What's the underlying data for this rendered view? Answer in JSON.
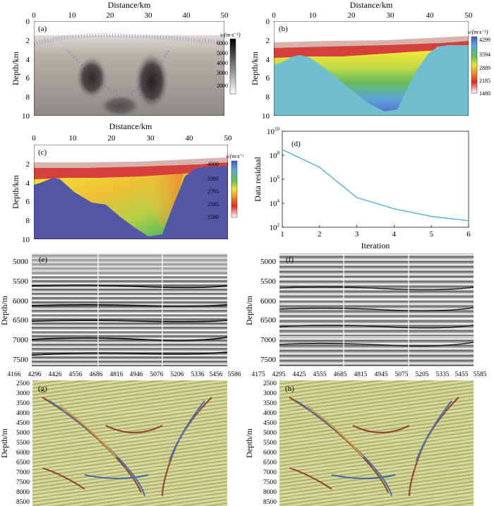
{
  "panel_a": {
    "label": "(a)",
    "xlabel": "Distance/km",
    "ylabel": "Depth/km",
    "xticks": [
      "0",
      "10",
      "20",
      "30",
      "40",
      "50"
    ],
    "yticks": [
      "0",
      "2",
      "4",
      "6",
      "8",
      "10"
    ],
    "colorbar": {
      "title": "v/(m·s⁻¹)",
      "ticks": [
        "6000",
        "5000",
        "4000",
        "3000",
        "2000"
      ]
    }
  },
  "panel_b": {
    "label": "(b)",
    "xlabel": "Distance/km",
    "ylabel": "Depth/km",
    "xticks": [
      "0",
      "10",
      "20",
      "30",
      "40",
      "50"
    ],
    "yticks": [
      "0",
      "2",
      "4",
      "6",
      "8",
      "10"
    ],
    "colorbar": {
      "title": "v/(m·s⁻¹)",
      "ticks": [
        "4299",
        "3594",
        "2889",
        "2185",
        "1480"
      ]
    }
  },
  "panel_c": {
    "label": "(c)",
    "xlabel": "Distance/km",
    "ylabel": "Depth/km",
    "xticks": [
      "0",
      "10",
      "20",
      "30",
      "40",
      "50"
    ],
    "yticks": [
      "0",
      "2",
      "4",
      "6",
      "8",
      "10"
    ],
    "colorbar": {
      "title": "v/(m·s⁻¹)",
      "ticks": [
        "4000",
        "3395",
        "2795",
        "2185",
        "1580"
      ]
    }
  },
  "panel_d": {
    "label": "(d)",
    "xlabel": "Iteration",
    "ylabel": "Data residual",
    "xticks": [
      "1",
      "2",
      "3",
      "4",
      "5",
      "6"
    ],
    "yticks": [
      {
        "base": "10",
        "exp": "10"
      },
      {
        "base": "10",
        "exp": "8"
      },
      {
        "base": "10",
        "exp": "6"
      },
      {
        "base": "10",
        "exp": "4"
      },
      {
        "base": "10",
        "exp": "2"
      }
    ]
  },
  "panel_e": {
    "label": "(e)",
    "ylabel": "Depth/m",
    "yticks": [
      "5000",
      "5500",
      "6000",
      "6500",
      "7000",
      "7500"
    ]
  },
  "panel_f": {
    "label": "(f)",
    "ylabel": "Depth/m",
    "yticks": [
      "5000",
      "5500",
      "6000",
      "6500",
      "7000",
      "7500"
    ]
  },
  "panel_g": {
    "label": "(g)",
    "ylabel": "Depth/m",
    "xticks": [
      "4166",
      "4296",
      "4426",
      "4556",
      "4686",
      "4816",
      "4946",
      "5076",
      "5206",
      "5336",
      "5456",
      "5586"
    ],
    "yticks": [
      "2500",
      "3000",
      "3500",
      "4000",
      "4500",
      "5000",
      "5500",
      "6000",
      "6500",
      "7000",
      "7500",
      "8000",
      "8500"
    ]
  },
  "panel_h": {
    "label": "(h)",
    "ylabel": "Depth/m",
    "xticks": [
      "4175",
      "4295",
      "4425",
      "4555",
      "4685",
      "4815",
      "4945",
      "5075",
      "5205",
      "5335",
      "5455",
      "5585"
    ],
    "yticks": [
      "2500",
      "3000",
      "3500",
      "4000",
      "4500",
      "5000",
      "5500",
      "6000",
      "6500",
      "7000",
      "7500",
      "8000",
      "8500"
    ]
  },
  "chart_data": {
    "type": "line",
    "title": "",
    "xlabel": "Iteration",
    "ylabel": "Data residual",
    "x": [
      1,
      2,
      3,
      4,
      5,
      6
    ],
    "y": [
      300000000.0,
      10000000.0,
      30000.0,
      3500.0,
      800.0,
      350.0
    ],
    "xlim": [
      1,
      6
    ],
    "ylim": [
      100,
      10000000000.0
    ],
    "yscale": "log",
    "line_color": "#3aa7d6"
  }
}
